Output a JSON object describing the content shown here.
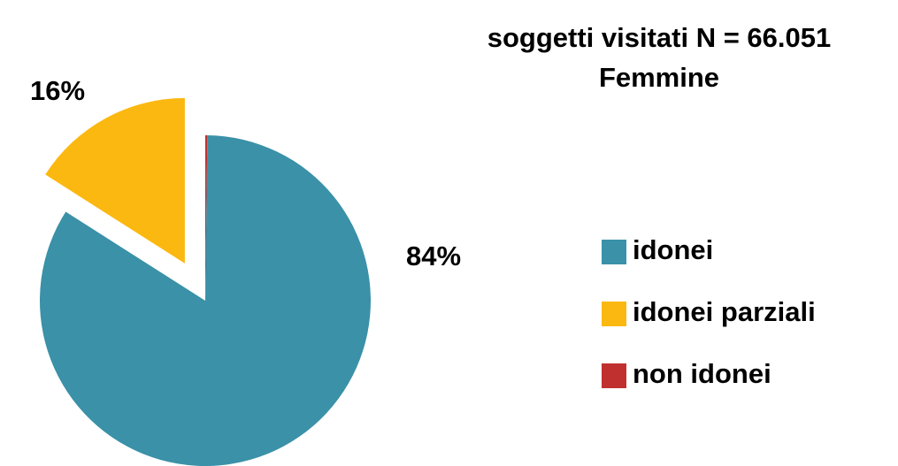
{
  "chart_data": {
    "type": "pie",
    "title": "soggetti visitati N = 66.051",
    "subtitle": "Femmine",
    "categories": [
      "idonei",
      "idonei parziali",
      "non idonei"
    ],
    "values": [
      84,
      16,
      0.2
    ],
    "value_labels": [
      "84%",
      "16%",
      null
    ],
    "colors": [
      "#3a91a8",
      "#fbb810",
      "#c0302f"
    ],
    "exploded": [
      false,
      true,
      false
    ],
    "legend": "right"
  }
}
